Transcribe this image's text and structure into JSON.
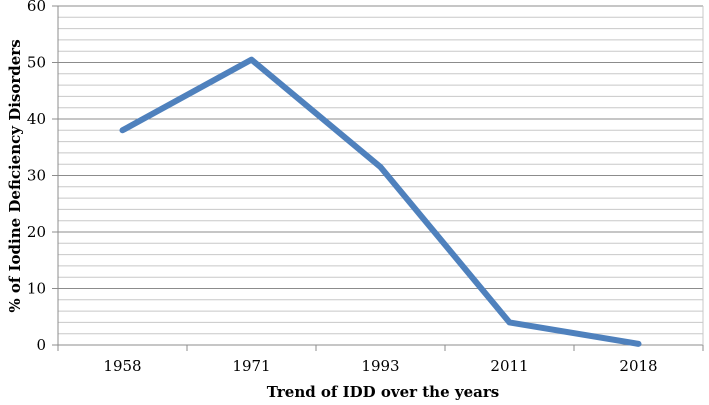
{
  "chart_data": {
    "type": "line",
    "title": "",
    "xlabel": "Trend of IDD over the years",
    "ylabel": "% of Iodine Deficiency Disorders",
    "categories": [
      "1958",
      "1971",
      "1993",
      "2011",
      "2018"
    ],
    "series": [
      {
        "values": [
          38,
          50.5,
          31.5,
          4,
          0.2
        ],
        "color": "#4f81bd"
      }
    ],
    "ylim": [
      0,
      60
    ],
    "yticks": [
      0,
      10,
      20,
      30,
      40,
      50,
      60
    ],
    "minor_grid_step": 2,
    "grid": true,
    "legend": "none"
  }
}
